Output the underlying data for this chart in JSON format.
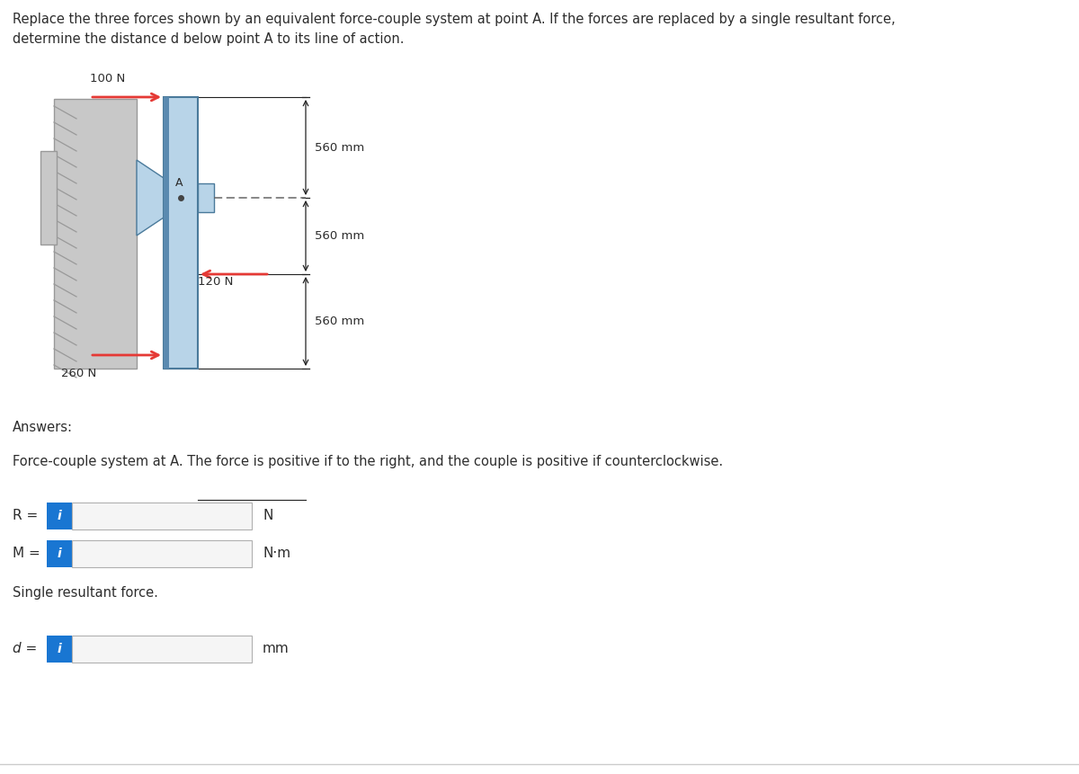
{
  "title_line1": "Replace the three forces shown by an equivalent force-couple system at point A. If the forces are replaced by a single resultant force,",
  "title_line2": "determine the distance d below point A to its line of action.",
  "force1_label": "100 N",
  "force2_label": "120 N",
  "force3_label": "260 N",
  "dim1": "560 mm",
  "dim2": "560 mm",
  "dim3": "560 mm",
  "point_label": "A",
  "answers_label": "Answers:",
  "force_couple_desc": "Force-couple system at A. The force is positive if to the right, and the couple is positive if counterclockwise.",
  "R_label": "R =",
  "M_label": "M =",
  "d_label": "d =",
  "N_unit": "N",
  "Nm_unit": "N·m",
  "mm_unit": "mm",
  "single_force_label": "Single resultant force.",
  "bg_color": "#ffffff",
  "text_color": "#2d2d2d",
  "arrow_color": "#e53935",
  "beam_color_light": "#b8d4e8",
  "beam_color_dark": "#5a8ab0",
  "beam_edge": "#4a7a9b",
  "wall_face": "#c8c8c8",
  "wall_edge": "#999999",
  "input_box_color": "#1976d2",
  "dim_line_color": "#222222",
  "dashed_line_color": "#666666",
  "bottom_line_color": "#cccccc"
}
